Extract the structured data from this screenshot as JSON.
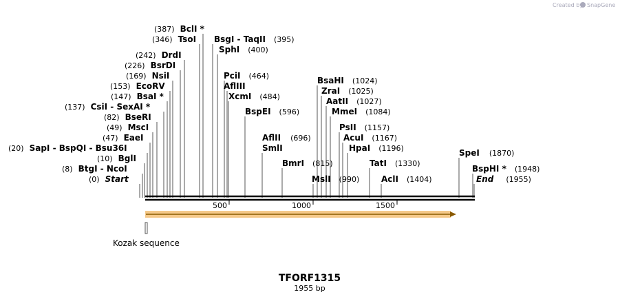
{
  "credit": "Created by",
  "brand": "SnapGene",
  "title": "TFORF1315",
  "subtitle": "1955 bp",
  "length": 1955,
  "ticks": [
    {
      "value": 500,
      "label": "500"
    },
    {
      "value": 1000,
      "label": "1000"
    },
    {
      "value": 1500,
      "label": "1500"
    }
  ],
  "feature": {
    "label": "Kozak sequence",
    "color": "#999999"
  },
  "orf": {
    "color": "#f5c98a",
    "arrow_color": "#b8860b"
  },
  "sites": [
    {
      "pos_label": "(387)",
      "parts": [
        {
          "t": "BclI"
        },
        {
          "t": " *"
        }
      ]
    },
    {
      "pos_label": "(346)",
      "parts": [
        {
          "t": "TsoI"
        }
      ]
    },
    {
      "pos_label": "(395)",
      "parts": [
        {
          "t": "BsgI"
        },
        {
          "t": " - "
        },
        {
          "t": "TaqII"
        }
      ]
    },
    {
      "pos_label": "(400)",
      "parts": [
        {
          "t": "SphI"
        }
      ]
    },
    {
      "pos_label": "(242)",
      "parts": [
        {
          "t": "DrdI"
        }
      ]
    },
    {
      "pos_label": "(226)",
      "parts": [
        {
          "t": "BsrDI"
        }
      ]
    },
    {
      "pos_label": "(169)",
      "parts": [
        {
          "t": "NsiI"
        }
      ]
    },
    {
      "pos_label": "(464)",
      "parts": [
        {
          "t": "PciI"
        }
      ]
    },
    {
      "pos_label": "",
      "parts": [
        {
          "t": "AflIII"
        }
      ]
    },
    {
      "pos_label": "(153)",
      "parts": [
        {
          "t": "EcoRV"
        }
      ]
    },
    {
      "pos_label": "(147)",
      "parts": [
        {
          "t": "BsaI"
        },
        {
          "t": " *"
        }
      ]
    },
    {
      "pos_label": "(484)",
      "parts": [
        {
          "t": "XcmI"
        }
      ]
    },
    {
      "pos_label": "(137)",
      "parts": [
        {
          "t": "CsiI"
        },
        {
          "t": " - "
        },
        {
          "t": "SexAI"
        },
        {
          "t": " *"
        }
      ]
    },
    {
      "pos_label": "(82)",
      "parts": [
        {
          "t": "BseRI"
        }
      ]
    },
    {
      "pos_label": "(596)",
      "parts": [
        {
          "t": "BspEI"
        }
      ]
    },
    {
      "pos_label": "(49)",
      "parts": [
        {
          "t": "MscI"
        }
      ]
    },
    {
      "pos_label": "(47)",
      "parts": [
        {
          "t": "EaeI"
        }
      ]
    },
    {
      "pos_label": "(696)",
      "parts": [
        {
          "t": "AflII"
        }
      ]
    },
    {
      "pos_label": "",
      "parts": [
        {
          "t": "SmlI"
        }
      ]
    },
    {
      "pos_label": "(20)",
      "parts": [
        {
          "t": "SapI"
        },
        {
          "t": " - "
        },
        {
          "t": "BspQI"
        },
        {
          "t": " - "
        },
        {
          "t": "Bsu36I"
        }
      ]
    },
    {
      "pos_label": "(10)",
      "parts": [
        {
          "t": "BglI"
        }
      ]
    },
    {
      "pos_label": "(8)",
      "parts": [
        {
          "t": "BtgI"
        },
        {
          "t": " - "
        },
        {
          "t": "NcoI"
        }
      ]
    },
    {
      "pos_label": "(0)",
      "parts": [
        {
          "t": "Start"
        }
      ]
    },
    {
      "pos_label": "(815)",
      "parts": [
        {
          "t": "BmrI"
        }
      ]
    },
    {
      "pos_label": "(1024)",
      "parts": [
        {
          "t": "BsaHI"
        }
      ]
    },
    {
      "pos_label": "(1025)",
      "parts": [
        {
          "t": "ZraI"
        }
      ]
    },
    {
      "pos_label": "(1027)",
      "parts": [
        {
          "t": "AatII"
        }
      ]
    },
    {
      "pos_label": "(1084)",
      "parts": [
        {
          "t": "MmeI"
        }
      ]
    },
    {
      "pos_label": "(1157)",
      "parts": [
        {
          "t": "PsII"
        }
      ]
    },
    {
      "pos_label": "(1167)",
      "parts": [
        {
          "t": "AcuI"
        }
      ]
    },
    {
      "pos_label": "(1196)",
      "parts": [
        {
          "t": "HpaI"
        }
      ]
    },
    {
      "pos_label": "(1330)",
      "parts": [
        {
          "t": "TatI"
        }
      ]
    },
    {
      "pos_label": "(990)",
      "parts": [
        {
          "t": "MslI"
        }
      ]
    },
    {
      "pos_label": "(1404)",
      "parts": [
        {
          "t": "AclI"
        }
      ]
    },
    {
      "pos_label": "(1870)",
      "parts": [
        {
          "t": "SpeI"
        }
      ]
    },
    {
      "pos_label": "(1948)",
      "parts": [
        {
          "t": "BspHI"
        },
        {
          "t": " *"
        }
      ]
    },
    {
      "pos_label": "(1955)",
      "parts": [
        {
          "t": "End"
        }
      ]
    }
  ]
}
